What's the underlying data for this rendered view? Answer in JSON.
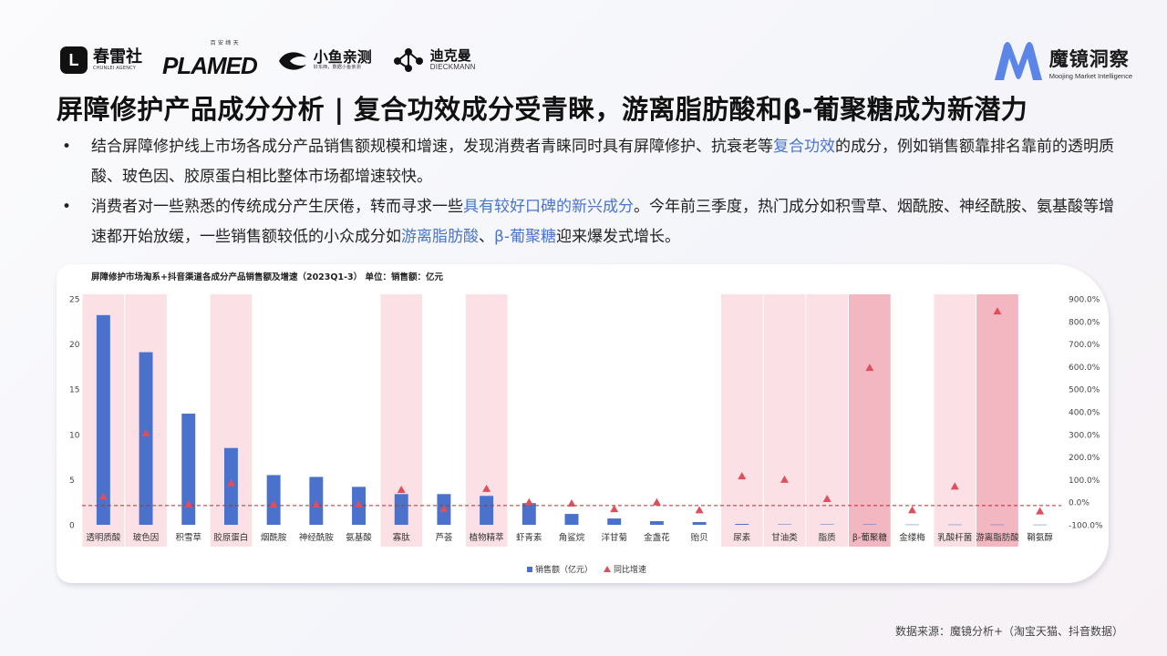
{
  "logos": {
    "chunlei": {
      "mark": "L",
      "name": "春雷社",
      "sub": "CHUNLEI AGENCY"
    },
    "plamed": {
      "top": "百 安 缔 天",
      "name": "PLAMED"
    },
    "xiaoyu": {
      "name": "小鱼亲测",
      "sub": "好东西，数据小鱼亲测"
    },
    "dieckmann": {
      "name": "迪克曼",
      "sub": "DIECKMANN"
    }
  },
  "brand": {
    "name": "魔镜洞察",
    "en": "Moojing Market Intelligence",
    "accent": "#4a74c9"
  },
  "title": "屏障修护产品成分分析 | 复合功效成分受青睐，游离脂肪酸和β-葡聚糖成为新潜力",
  "bullets": [
    {
      "pre": "结合屏障修护线上市场各成分产品销售额规模和增速，发现消费者青睐同时具有屏障修护、抗衰老等",
      "hl": "复合功效",
      "post": "的成分，例如销售额靠排名靠前的透明质酸、玻色因、胶原蛋白相比整体市场都增速较快。"
    },
    {
      "pre": "消费者对一些熟悉的传统成分产生厌倦，转而寻求一些",
      "hl": "具有较好口碑的新兴成分",
      "mid": "。今年前三季度，热门成分如积雪草、烟酰胺、神经酰胺、氨基酸等增速都开始放缓，一些销售额较低的小众成分如",
      "hl2": "游离脂肪酸",
      "sep": "、",
      "hl3": "β-葡聚糖",
      "post": "迎来爆发式增长。"
    }
  ],
  "chart_title": "屏障修护市场淘系+抖音渠道各成分产品销售额及增速（2023Q1-3）  单位：销售额：亿元",
  "source": "数据来源：魔镜分析+（淘宝天猫、抖音数据）",
  "chart_data": {
    "type": "bar",
    "categories": [
      "透明质酸",
      "玻色因",
      "积雪草",
      "胶原蛋白",
      "烟酰胺",
      "神经酰胺",
      "氨基酸",
      "寡肽",
      "芦荟",
      "植物精萃",
      "虾青素",
      "角鲨烷",
      "洋甘菊",
      "金盏花",
      "贻贝",
      "尿素",
      "甘油类",
      "脂质",
      "β-葡聚糖",
      "金缕梅",
      "乳酸杆菌",
      "游离脂肪酸",
      "鞘氨醇"
    ],
    "series": [
      {
        "name": "销售额（亿元）",
        "kind": "bar",
        "axis": "left",
        "color": "#4a72cc",
        "values": [
          23.2,
          19.1,
          12.3,
          8.5,
          5.5,
          5.3,
          4.2,
          3.4,
          3.4,
          3.2,
          2.4,
          1.2,
          0.7,
          0.4,
          0.3,
          0.1,
          0.05,
          0.05,
          0.05,
          0.03,
          0.03,
          0.03,
          0.02
        ]
      },
      {
        "name": "同比增速",
        "kind": "scatter",
        "axis": "right",
        "color": "#e04e5e",
        "marker": "triangle",
        "values": [
          25,
          305,
          -10,
          85,
          -10,
          -10,
          -10,
          55,
          -30,
          60,
          0,
          -5,
          -30,
          0,
          -35,
          115,
          100,
          15,
          595,
          -35,
          70,
          845,
          -40
        ]
      }
    ],
    "left_axis": {
      "min": 0,
      "max": 25,
      "ticks": [
        "0",
        "5",
        "10",
        "15",
        "20",
        "25"
      ]
    },
    "right_axis": {
      "min": -100,
      "max": 900,
      "ticks": [
        "-100.0%",
        "0.0%",
        "100.0%",
        "200.0%",
        "300.0%",
        "400.0%",
        "500.0%",
        "600.0%",
        "700.0%",
        "800.0%",
        "900.0%"
      ]
    },
    "reference_line": {
      "axis": "right",
      "value": -15,
      "style": "dashed",
      "color": "#cc2233"
    },
    "highlights": [
      {
        "category": "透明质酸",
        "shade": "light"
      },
      {
        "category": "玻色因",
        "shade": "light"
      },
      {
        "category": "胶原蛋白",
        "shade": "light"
      },
      {
        "category": "寡肽",
        "shade": "light"
      },
      {
        "category": "植物精萃",
        "shade": "light"
      },
      {
        "category": "尿素",
        "shade": "light"
      },
      {
        "category": "甘油类",
        "shade": "light"
      },
      {
        "category": "脂质",
        "shade": "light"
      },
      {
        "category": "β-葡聚糖",
        "shade": "dark"
      },
      {
        "category": "乳酸杆菌",
        "shade": "light"
      },
      {
        "category": "游离脂肪酸",
        "shade": "dark"
      }
    ],
    "highlight_colors": {
      "light": "#fbe0e5",
      "dark": "#f2b7c1"
    },
    "legend": {
      "position": "bottom",
      "items": [
        "销售额（亿元）",
        "同比增速"
      ]
    },
    "grid": false
  }
}
